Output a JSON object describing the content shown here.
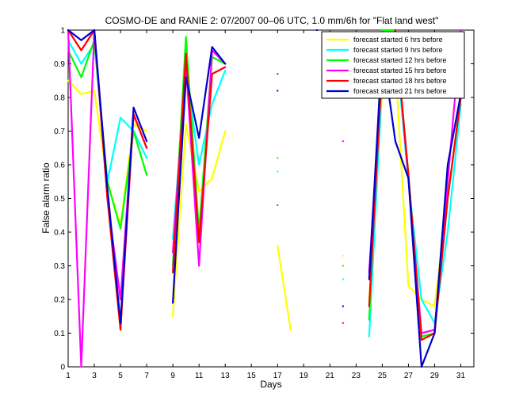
{
  "chart_data": {
    "type": "line",
    "title": "COSMO-DE and RANIE 2: 07/2007 00–06 UTC, 1.0 mm/6h for \"Flat land west\"",
    "xlabel": "Days",
    "ylabel": "False alarm ratio",
    "xlim": [
      1,
      32
    ],
    "ylim": [
      0,
      1
    ],
    "xticks": [
      1,
      3,
      5,
      7,
      9,
      11,
      13,
      15,
      17,
      19,
      21,
      23,
      25,
      27,
      29,
      31
    ],
    "yticks": [
      0,
      0.1,
      0.2,
      0.3,
      0.4,
      0.5,
      0.6,
      0.7,
      0.8,
      0.9,
      1
    ],
    "grid": false,
    "legend_position": "top-right",
    "x": [
      1,
      2,
      3,
      4,
      5,
      6,
      7,
      8,
      9,
      10,
      11,
      12,
      13,
      14,
      15,
      16,
      17,
      18,
      19,
      20,
      21,
      22,
      23,
      24,
      25,
      26,
      27,
      28,
      29,
      30,
      31
    ],
    "series": [
      {
        "name": "forecast started 6 hrs before",
        "color": "#ffff00",
        "values": [
          0.85,
          0.81,
          0.82,
          0.55,
          0.42,
          0.72,
          0.7,
          null,
          0.15,
          0.72,
          0.52,
          0.56,
          0.7,
          null,
          null,
          null,
          0.36,
          0.11,
          null,
          null,
          null,
          0.33,
          null,
          0.2,
          0.82,
          0.9,
          0.24,
          0.2,
          0.18,
          0.5,
          0.8
        ]
      },
      {
        "name": "forecast started 9 hrs before",
        "color": "#00ffff",
        "values": [
          0.97,
          0.9,
          0.96,
          0.55,
          0.74,
          0.7,
          0.62,
          null,
          0.38,
          0.88,
          0.6,
          0.78,
          0.88,
          null,
          null,
          null,
          0.58,
          null,
          null,
          null,
          null,
          0.26,
          null,
          0.09,
          0.85,
          0.97,
          0.55,
          0.2,
          0.13,
          0.4,
          0.78
        ]
      },
      {
        "name": "forecast started 12 hrs before",
        "color": "#00ff00",
        "values": [
          0.94,
          0.86,
          0.97,
          0.55,
          0.41,
          0.7,
          0.57,
          null,
          0.3,
          0.98,
          0.4,
          0.92,
          0.9,
          null,
          null,
          null,
          0.62,
          null,
          null,
          null,
          null,
          0.3,
          null,
          0.14,
          1.0,
          1.0,
          0.57,
          0.09,
          0.1,
          0.5,
          0.8
        ]
      },
      {
        "name": "forecast started 15 hrs before",
        "color": "#ff00ff",
        "values": [
          1.0,
          0.0,
          1.0,
          0.5,
          0.2,
          0.75,
          0.65,
          null,
          0.34,
          0.9,
          0.3,
          0.94,
          0.9,
          null,
          null,
          null,
          0.48,
          null,
          null,
          null,
          null,
          0.67,
          null,
          0.28,
          0.9,
          1.0,
          0.56,
          0.1,
          0.11,
          0.55,
          1.0
        ]
      },
      {
        "name": "forecast started 18 hrs before",
        "color": "#ff0000",
        "values": [
          1.0,
          0.94,
          1.0,
          0.5,
          0.11,
          0.75,
          0.65,
          null,
          0.28,
          0.93,
          0.37,
          0.87,
          0.89,
          null,
          null,
          null,
          0.87,
          null,
          null,
          null,
          null,
          0.13,
          null,
          0.18,
          0.9,
          1.0,
          0.57,
          0.08,
          0.1,
          0.5,
          0.8
        ]
      },
      {
        "name": "forecast started 21 hrs before",
        "color": "#0000cc",
        "values": [
          1.0,
          0.97,
          1.0,
          0.53,
          0.13,
          0.77,
          0.67,
          null,
          0.19,
          0.86,
          0.68,
          0.95,
          0.9,
          null,
          null,
          null,
          0.82,
          null,
          null,
          1.0,
          null,
          0.18,
          null,
          0.26,
          0.95,
          0.67,
          0.56,
          0.0,
          0.1,
          0.6,
          0.81
        ]
      }
    ]
  }
}
